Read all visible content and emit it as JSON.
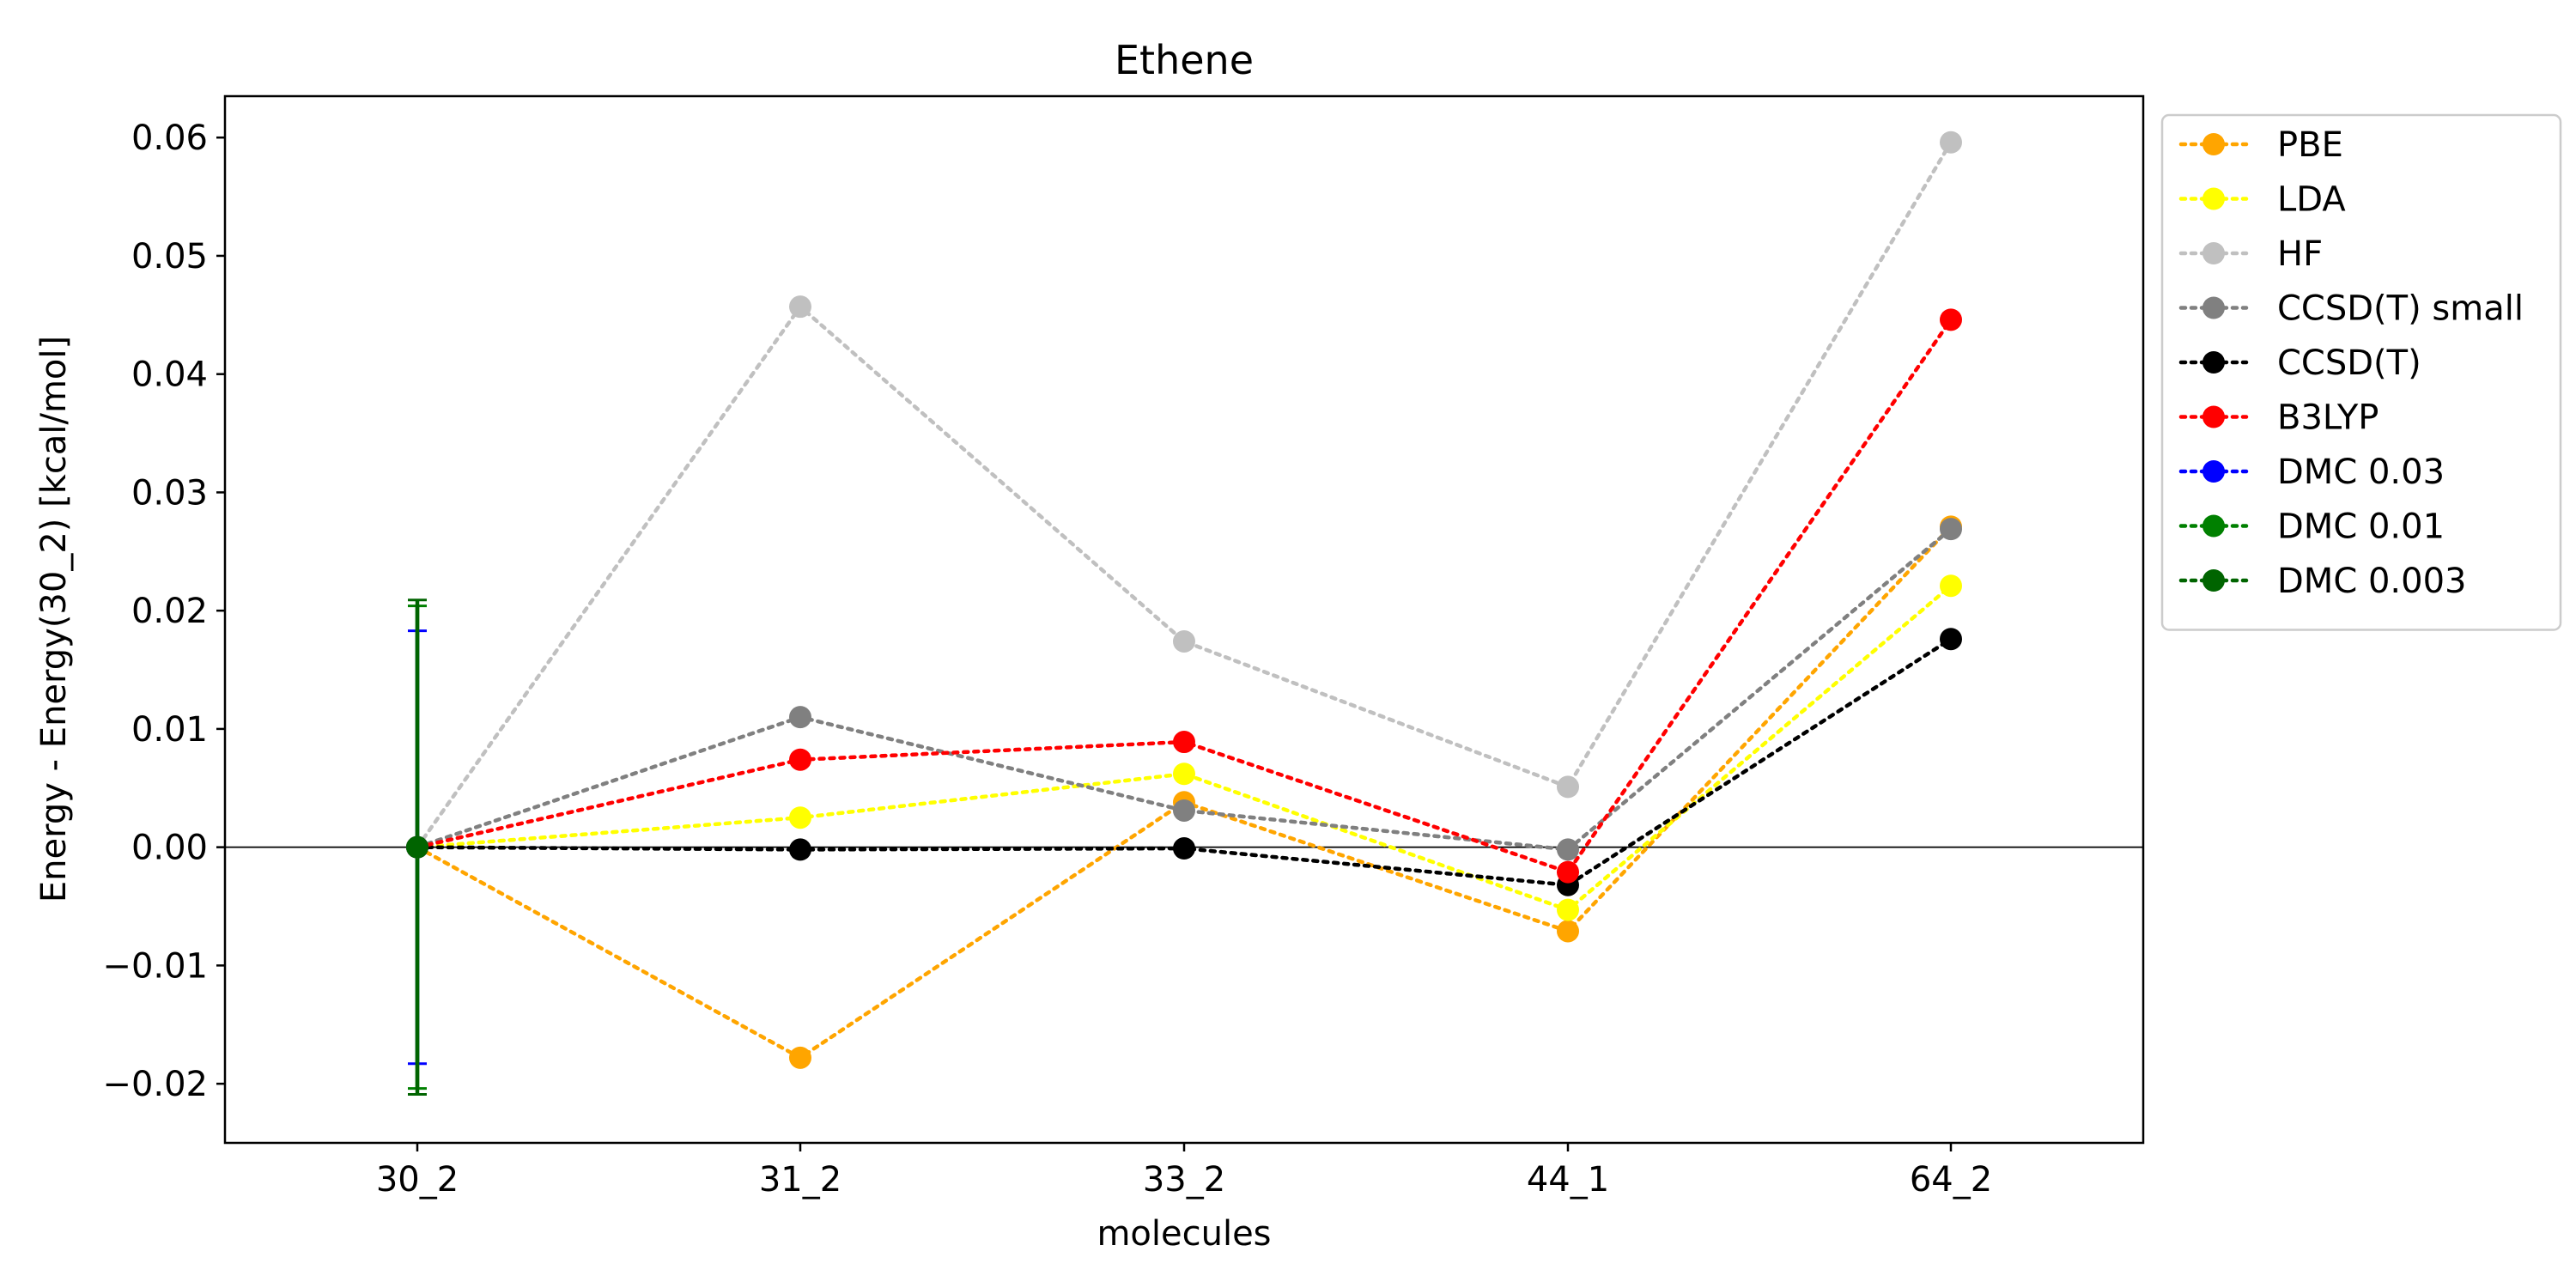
{
  "chart_data": {
    "type": "line",
    "title": "Ethene",
    "xlabel": "molecules",
    "ylabel": "Energy - Energy(30_2) [kcal/mol]",
    "categories": [
      "30_2",
      "31_2",
      "33_2",
      "44_1",
      "64_2"
    ],
    "ylim": [
      -0.025,
      0.0635
    ],
    "yticks": [
      -0.02,
      -0.01,
      0.0,
      0.01,
      0.02,
      0.03,
      0.04,
      0.05,
      0.06
    ],
    "ytick_labels": [
      "−0.02",
      "−0.01",
      "0.00",
      "0.01",
      "0.02",
      "0.03",
      "0.04",
      "0.05",
      "0.06"
    ],
    "grid": false,
    "zero_line": true,
    "legend_position": "outside-right-top",
    "series": [
      {
        "name": "PBE",
        "color": "#FFA500",
        "values": [
          0,
          -0.0178,
          0.0038,
          -0.0071,
          0.0271
        ]
      },
      {
        "name": "LDA",
        "color": "#FFFF00",
        "values": [
          0,
          0.0025,
          0.0062,
          -0.0053,
          0.0221
        ]
      },
      {
        "name": "HF",
        "color": "#C0C0C0",
        "values": [
          0,
          0.0457,
          0.0174,
          0.0051,
          0.0596
        ]
      },
      {
        "name": "CCSD(T) small",
        "color": "#808080",
        "values": [
          0,
          0.011,
          0.0031,
          -0.0002,
          0.0269
        ]
      },
      {
        "name": "CCSD(T)",
        "color": "#000000",
        "values": [
          0,
          -0.0002,
          -0.0001,
          -0.0032,
          0.0176
        ]
      },
      {
        "name": "B3LYP",
        "color": "#FF0000",
        "values": [
          0,
          0.0074,
          0.0089,
          -0.0021,
          0.0446
        ]
      },
      {
        "name": "DMC 0.03",
        "color": "#0000FF",
        "values": [
          0,
          null,
          null,
          null,
          null
        ],
        "errors": [
          0.0183,
          null,
          null,
          null,
          null
        ]
      },
      {
        "name": "DMC 0.01",
        "color": "#008000",
        "values": [
          0,
          null,
          null,
          null,
          null
        ],
        "errors": [
          0.0204,
          null,
          null,
          null,
          null
        ]
      },
      {
        "name": "DMC 0.003",
        "color": "#006400",
        "values": [
          0,
          null,
          null,
          null,
          null
        ],
        "errors": [
          0.0209,
          null,
          null,
          null,
          null
        ]
      }
    ]
  }
}
